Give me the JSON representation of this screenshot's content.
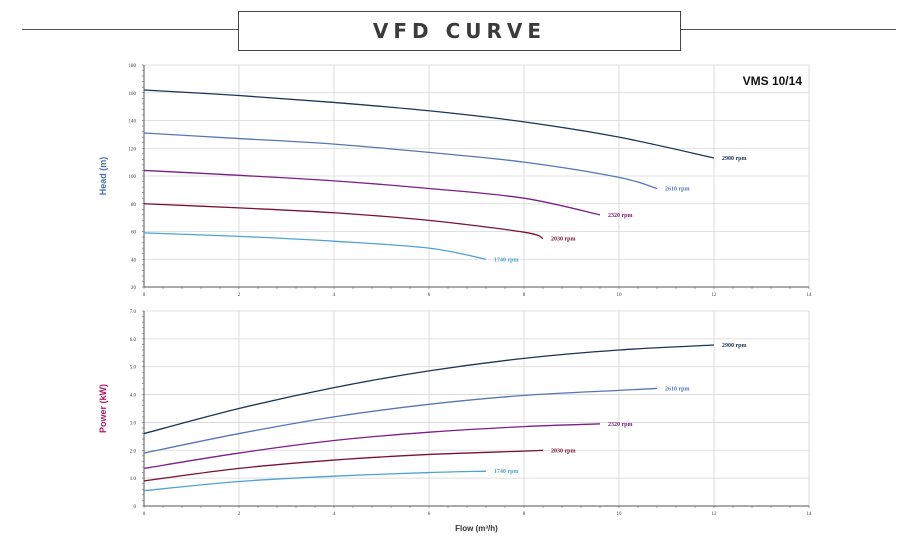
{
  "title": "VFD CURVE",
  "model": "VMS 10/14",
  "chart_data": [
    {
      "type": "line",
      "ylabel": "Head (m)",
      "ylabel_color": "#4a6fb0",
      "xlabel": "",
      "xlim": [
        0,
        14
      ],
      "ylim": [
        20,
        180
      ],
      "x_ticks": [
        0,
        2,
        4,
        6,
        8,
        10,
        12,
        14
      ],
      "y_ticks": [
        20,
        40,
        60,
        80,
        100,
        120,
        140,
        160,
        180
      ],
      "grid": true,
      "series": [
        {
          "name": "2900 rpm",
          "color": "#1c3556",
          "points": [
            [
              0,
              162
            ],
            [
              2,
              158
            ],
            [
              4,
              153
            ],
            [
              6,
              147
            ],
            [
              8,
              139
            ],
            [
              10,
              128
            ],
            [
              12,
              113
            ]
          ]
        },
        {
          "name": "2610 rpm",
          "color": "#5577b3",
          "points": [
            [
              0,
              131
            ],
            [
              2,
              127
            ],
            [
              4,
              123
            ],
            [
              6,
              117
            ],
            [
              8,
              110
            ],
            [
              10,
              99
            ],
            [
              10.8,
              91
            ]
          ]
        },
        {
          "name": "2320 rpm",
          "color": "#7b1f86",
          "points": [
            [
              0,
              104
            ],
            [
              2,
              100.5
            ],
            [
              4,
              96.5
            ],
            [
              6,
              91
            ],
            [
              8,
              84
            ],
            [
              9.6,
              72
            ]
          ]
        },
        {
          "name": "2030 rpm",
          "color": "#7a1035",
          "points": [
            [
              0,
              80
            ],
            [
              2,
              77
            ],
            [
              4,
              73.5
            ],
            [
              6,
              68
            ],
            [
              8,
              59.5
            ],
            [
              8.4,
              55
            ]
          ]
        },
        {
          "name": "1740 rpm",
          "color": "#4da3d4",
          "points": [
            [
              0,
              59
            ],
            [
              2,
              56.5
            ],
            [
              4,
              53
            ],
            [
              6,
              48
            ],
            [
              7.2,
              40
            ]
          ]
        }
      ]
    },
    {
      "type": "line",
      "ylabel": "Power (kW)",
      "ylabel_color": "#b0186e",
      "xlabel": "Flow (m³/h)",
      "xlim": [
        0,
        14
      ],
      "ylim": [
        0,
        7
      ],
      "x_ticks": [
        0,
        2,
        4,
        6,
        8,
        10,
        12,
        14
      ],
      "y_ticks": [
        0,
        1.0,
        2.0,
        3.0,
        4.0,
        5.0,
        6.0,
        7.0
      ],
      "y_tick_labels": [
        "0",
        "1.0",
        "2.0",
        "3.0",
        "4.0",
        "5.0",
        "6.0",
        "7.0"
      ],
      "grid": true,
      "series": [
        {
          "name": "2900 rpm",
          "color": "#1c3556",
          "points": [
            [
              0,
              2.6
            ],
            [
              2,
              3.5
            ],
            [
              4,
              4.25
            ],
            [
              6,
              4.85
            ],
            [
              8,
              5.3
            ],
            [
              10,
              5.6
            ],
            [
              12,
              5.78
            ]
          ]
        },
        {
          "name": "2610 rpm",
          "color": "#5577b3",
          "points": [
            [
              0,
              1.9
            ],
            [
              2,
              2.6
            ],
            [
              4,
              3.2
            ],
            [
              6,
              3.65
            ],
            [
              8,
              3.97
            ],
            [
              10,
              4.15
            ],
            [
              10.8,
              4.22
            ]
          ]
        },
        {
          "name": "2320 rpm",
          "color": "#7b1f86",
          "points": [
            [
              0,
              1.35
            ],
            [
              2,
              1.9
            ],
            [
              4,
              2.35
            ],
            [
              6,
              2.65
            ],
            [
              8,
              2.85
            ],
            [
              9.6,
              2.95
            ]
          ]
        },
        {
          "name": "2030 rpm",
          "color": "#7a1035",
          "points": [
            [
              0,
              0.9
            ],
            [
              2,
              1.35
            ],
            [
              4,
              1.65
            ],
            [
              6,
              1.85
            ],
            [
              8,
              1.97
            ],
            [
              8.4,
              2.0
            ]
          ]
        },
        {
          "name": "1740 rpm",
          "color": "#4da3d4",
          "points": [
            [
              0,
              0.55
            ],
            [
              2,
              0.88
            ],
            [
              4,
              1.07
            ],
            [
              6,
              1.2
            ],
            [
              7.2,
              1.25
            ]
          ]
        }
      ]
    }
  ]
}
